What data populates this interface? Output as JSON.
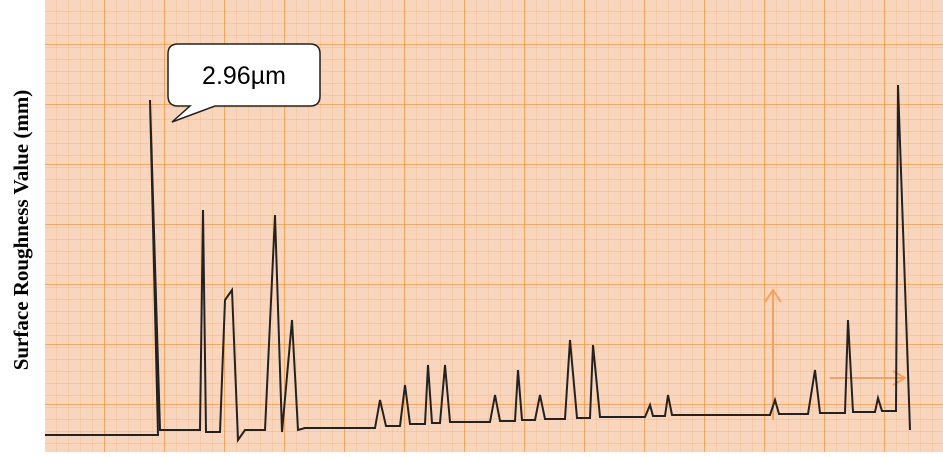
{
  "axis_label": "Surface Roughness Value (mm)",
  "callout": "2.96µm"
}
